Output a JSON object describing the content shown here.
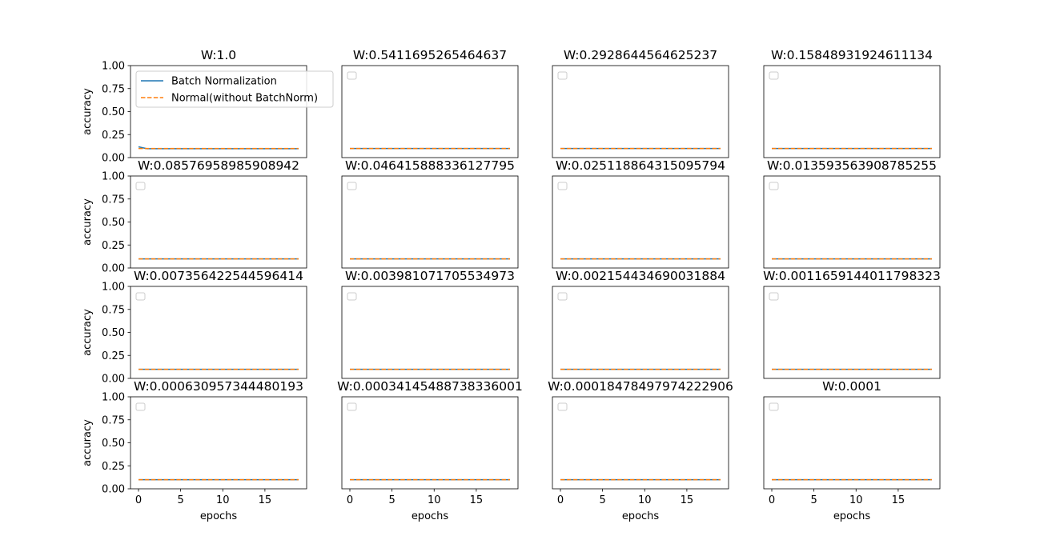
{
  "figure": {
    "colors": {
      "batch_norm": "#1f77b4",
      "normal": "#ff7f0e",
      "axes_edge": "#000000",
      "legend_edge": "#cccccc"
    }
  },
  "chart_data": [
    {
      "type": "line",
      "title": "W:1.0",
      "xlabel": "",
      "ylabel": "accuracy",
      "xlim": [
        -0.95,
        19.95
      ],
      "ylim": [
        0,
        1
      ],
      "xticks": [],
      "yticks": [
        "0.00",
        "0.25",
        "0.50",
        "0.75",
        "1.00"
      ],
      "legend": "upper-left",
      "legend_entries": [
        "Batch Normalization",
        "Normal(without BatchNorm)"
      ],
      "series": [
        {
          "name": "Batch Normalization",
          "style": "solid",
          "x": [
            0,
            1,
            2,
            3,
            4,
            5,
            6,
            7,
            8,
            9,
            10,
            11,
            12,
            13,
            14,
            15,
            16,
            17,
            18,
            19
          ],
          "y": [
            0.117,
            0.097,
            0.097,
            0.097,
            0.097,
            0.097,
            0.097,
            0.097,
            0.097,
            0.097,
            0.097,
            0.097,
            0.097,
            0.097,
            0.097,
            0.097,
            0.097,
            0.097,
            0.097,
            0.097
          ]
        },
        {
          "name": "Normal(without BatchNorm)",
          "style": "dashed",
          "x": [
            0,
            1,
            2,
            3,
            4,
            5,
            6,
            7,
            8,
            9,
            10,
            11,
            12,
            13,
            14,
            15,
            16,
            17,
            18,
            19
          ],
          "y": [
            0.099,
            0.099,
            0.099,
            0.099,
            0.099,
            0.099,
            0.099,
            0.099,
            0.099,
            0.099,
            0.099,
            0.099,
            0.099,
            0.099,
            0.099,
            0.099,
            0.099,
            0.099,
            0.099,
            0.099
          ]
        }
      ]
    },
    {
      "type": "line",
      "title": "W:0.5411695265464637",
      "xlabel": "",
      "ylabel": "",
      "xlim": [
        -0.95,
        19.95
      ],
      "ylim": [
        0,
        1
      ],
      "xticks": [],
      "yticks": [],
      "legend": "empty-upper-left",
      "legend_entries": [],
      "series": [
        {
          "style": "solid",
          "x": [
            0,
            19
          ],
          "y": [
            0.099,
            0.099
          ]
        },
        {
          "style": "dashed",
          "x": [
            0,
            19
          ],
          "y": [
            0.099,
            0.099
          ]
        }
      ]
    },
    {
      "type": "line",
      "title": "W:0.2928644564625237",
      "xlabel": "",
      "ylabel": "",
      "xlim": [
        -0.95,
        19.95
      ],
      "ylim": [
        0,
        1
      ],
      "xticks": [],
      "yticks": [],
      "legend": "empty-upper-left",
      "legend_entries": [],
      "series": [
        {
          "style": "solid",
          "x": [
            0,
            19
          ],
          "y": [
            0.099,
            0.099
          ]
        },
        {
          "style": "dashed",
          "x": [
            0,
            19
          ],
          "y": [
            0.099,
            0.099
          ]
        }
      ]
    },
    {
      "type": "line",
      "title": "W:0.15848931924611134",
      "xlabel": "",
      "ylabel": "",
      "xlim": [
        -0.95,
        19.95
      ],
      "ylim": [
        0,
        1
      ],
      "xticks": [],
      "yticks": [],
      "legend": "empty-upper-left",
      "legend_entries": [],
      "series": [
        {
          "style": "solid",
          "x": [
            0,
            19
          ],
          "y": [
            0.099,
            0.099
          ]
        },
        {
          "style": "dashed",
          "x": [
            0,
            19
          ],
          "y": [
            0.099,
            0.099
          ]
        }
      ]
    },
    {
      "type": "line",
      "title": "W:0.08576958985908942",
      "xlabel": "",
      "ylabel": "accuracy",
      "xlim": [
        -0.95,
        19.95
      ],
      "ylim": [
        0,
        1
      ],
      "xticks": [],
      "yticks": [
        "0.00",
        "0.25",
        "0.50",
        "0.75",
        "1.00"
      ],
      "legend": "empty-upper-left",
      "legend_entries": [],
      "series": [
        {
          "style": "solid",
          "x": [
            0,
            19
          ],
          "y": [
            0.099,
            0.099
          ]
        },
        {
          "style": "dashed",
          "x": [
            0,
            19
          ],
          "y": [
            0.099,
            0.099
          ]
        }
      ]
    },
    {
      "type": "line",
      "title": "W:0.046415888336127795",
      "xlabel": "",
      "ylabel": "",
      "xlim": [
        -0.95,
        19.95
      ],
      "ylim": [
        0,
        1
      ],
      "xticks": [],
      "yticks": [],
      "legend": "empty-upper-left",
      "legend_entries": [],
      "series": [
        {
          "style": "solid",
          "x": [
            0,
            19
          ],
          "y": [
            0.099,
            0.099
          ]
        },
        {
          "style": "dashed",
          "x": [
            0,
            19
          ],
          "y": [
            0.099,
            0.099
          ]
        }
      ]
    },
    {
      "type": "line",
      "title": "W:0.025118864315095794",
      "xlabel": "",
      "ylabel": "",
      "xlim": [
        -0.95,
        19.95
      ],
      "ylim": [
        0,
        1
      ],
      "xticks": [],
      "yticks": [],
      "legend": "empty-upper-left",
      "legend_entries": [],
      "series": [
        {
          "style": "solid",
          "x": [
            0,
            19
          ],
          "y": [
            0.099,
            0.099
          ]
        },
        {
          "style": "dashed",
          "x": [
            0,
            19
          ],
          "y": [
            0.099,
            0.099
          ]
        }
      ]
    },
    {
      "type": "line",
      "title": "W:0.013593563908785255",
      "xlabel": "",
      "ylabel": "",
      "xlim": [
        -0.95,
        19.95
      ],
      "ylim": [
        0,
        1
      ],
      "xticks": [],
      "yticks": [],
      "legend": "empty-upper-left",
      "legend_entries": [],
      "series": [
        {
          "style": "solid",
          "x": [
            0,
            19
          ],
          "y": [
            0.099,
            0.099
          ]
        },
        {
          "style": "dashed",
          "x": [
            0,
            19
          ],
          "y": [
            0.099,
            0.099
          ]
        }
      ]
    },
    {
      "type": "line",
      "title": "W:0.007356422544596414",
      "xlabel": "",
      "ylabel": "accuracy",
      "xlim": [
        -0.95,
        19.95
      ],
      "ylim": [
        0,
        1
      ],
      "xticks": [],
      "yticks": [
        "0.00",
        "0.25",
        "0.50",
        "0.75",
        "1.00"
      ],
      "legend": "empty-upper-left",
      "legend_entries": [],
      "series": [
        {
          "style": "solid",
          "x": [
            0,
            19
          ],
          "y": [
            0.099,
            0.099
          ]
        },
        {
          "style": "dashed",
          "x": [
            0,
            19
          ],
          "y": [
            0.099,
            0.099
          ]
        }
      ]
    },
    {
      "type": "line",
      "title": "W:0.003981071705534973",
      "xlabel": "",
      "ylabel": "",
      "xlim": [
        -0.95,
        19.95
      ],
      "ylim": [
        0,
        1
      ],
      "xticks": [],
      "yticks": [],
      "legend": "empty-upper-left",
      "legend_entries": [],
      "series": [
        {
          "style": "solid",
          "x": [
            0,
            19
          ],
          "y": [
            0.099,
            0.099
          ]
        },
        {
          "style": "dashed",
          "x": [
            0,
            19
          ],
          "y": [
            0.099,
            0.099
          ]
        }
      ]
    },
    {
      "type": "line",
      "title": "W:0.002154434690031884",
      "xlabel": "",
      "ylabel": "",
      "xlim": [
        -0.95,
        19.95
      ],
      "ylim": [
        0,
        1
      ],
      "xticks": [],
      "yticks": [],
      "legend": "empty-upper-left",
      "legend_entries": [],
      "series": [
        {
          "style": "solid",
          "x": [
            0,
            19
          ],
          "y": [
            0.099,
            0.099
          ]
        },
        {
          "style": "dashed",
          "x": [
            0,
            19
          ],
          "y": [
            0.099,
            0.099
          ]
        }
      ]
    },
    {
      "type": "line",
      "title": "W:0.0011659144011798323",
      "xlabel": "",
      "ylabel": "",
      "xlim": [
        -0.95,
        19.95
      ],
      "ylim": [
        0,
        1
      ],
      "xticks": [],
      "yticks": [],
      "legend": "empty-upper-left",
      "legend_entries": [],
      "series": [
        {
          "style": "solid",
          "x": [
            0,
            19
          ],
          "y": [
            0.099,
            0.099
          ]
        },
        {
          "style": "dashed",
          "x": [
            0,
            19
          ],
          "y": [
            0.099,
            0.099
          ]
        }
      ]
    },
    {
      "type": "line",
      "title": "W:0.000630957344480193",
      "xlabel": "epochs",
      "ylabel": "accuracy",
      "xlim": [
        -0.95,
        19.95
      ],
      "ylim": [
        0,
        1
      ],
      "xticks": [
        "0",
        "5",
        "10",
        "15"
      ],
      "yticks": [
        "0.00",
        "0.25",
        "0.50",
        "0.75",
        "1.00"
      ],
      "legend": "empty-upper-left",
      "legend_entries": [],
      "series": [
        {
          "style": "solid",
          "x": [
            0,
            19
          ],
          "y": [
            0.099,
            0.099
          ]
        },
        {
          "style": "dashed",
          "x": [
            0,
            19
          ],
          "y": [
            0.099,
            0.099
          ]
        }
      ]
    },
    {
      "type": "line",
      "title": "W:0.00034145488738336001",
      "xlabel": "epochs",
      "ylabel": "",
      "xlim": [
        -0.95,
        19.95
      ],
      "ylim": [
        0,
        1
      ],
      "xticks": [
        "0",
        "5",
        "10",
        "15"
      ],
      "yticks": [],
      "legend": "empty-upper-left",
      "legend_entries": [],
      "series": [
        {
          "style": "solid",
          "x": [
            0,
            19
          ],
          "y": [
            0.099,
            0.099
          ]
        },
        {
          "style": "dashed",
          "x": [
            0,
            19
          ],
          "y": [
            0.099,
            0.099
          ]
        }
      ]
    },
    {
      "type": "line",
      "title": "W:0.00018478497974222906",
      "xlabel": "epochs",
      "ylabel": "",
      "xlim": [
        -0.95,
        19.95
      ],
      "ylim": [
        0,
        1
      ],
      "xticks": [
        "0",
        "5",
        "10",
        "15"
      ],
      "yticks": [],
      "legend": "empty-upper-left",
      "legend_entries": [],
      "series": [
        {
          "style": "solid",
          "x": [
            0,
            19
          ],
          "y": [
            0.099,
            0.099
          ]
        },
        {
          "style": "dashed",
          "x": [
            0,
            19
          ],
          "y": [
            0.099,
            0.099
          ]
        }
      ]
    },
    {
      "type": "line",
      "title": "W:0.0001",
      "xlabel": "epochs",
      "ylabel": "",
      "xlim": [
        -0.95,
        19.95
      ],
      "ylim": [
        0,
        1
      ],
      "xticks": [
        "0",
        "5",
        "10",
        "15"
      ],
      "yticks": [],
      "legend": "empty-upper-left",
      "legend_entries": [],
      "series": [
        {
          "style": "solid",
          "x": [
            0,
            19
          ],
          "y": [
            0.099,
            0.099
          ]
        },
        {
          "style": "dashed",
          "x": [
            0,
            19
          ],
          "y": [
            0.099,
            0.099
          ]
        }
      ]
    }
  ]
}
